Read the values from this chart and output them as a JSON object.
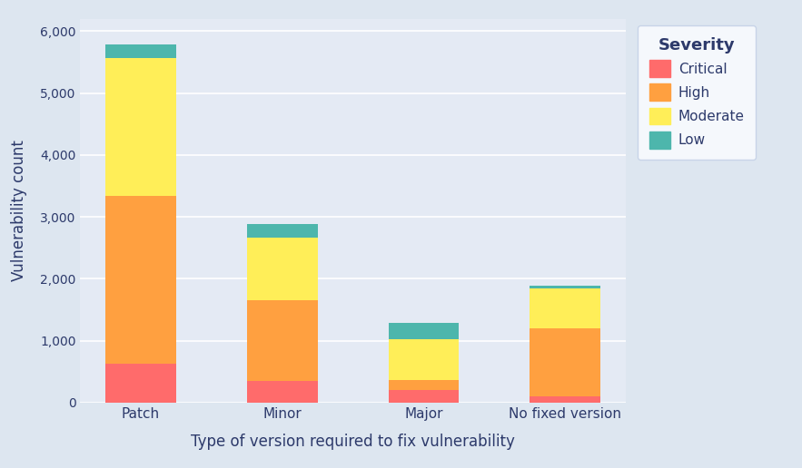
{
  "categories": [
    "Patch",
    "Minor",
    "Major",
    "No fixed version"
  ],
  "series": {
    "Critical": [
      620,
      350,
      200,
      100
    ],
    "High": [
      2720,
      1300,
      170,
      1100
    ],
    "Moderate": [
      2230,
      1010,
      650,
      650
    ],
    "Low": [
      220,
      230,
      270,
      30
    ]
  },
  "colors": {
    "Critical": "#ff6b6b",
    "High": "#ffa040",
    "Moderate": "#ffee58",
    "Low": "#4db6ac"
  },
  "xlabel": "Type of version required to fix vulnerability",
  "ylabel": "Vulnerability count",
  "legend_title": "Severity",
  "figure_background": "#dde6f0",
  "plot_background": "#e4eaf4",
  "ylim": [
    0,
    6200
  ],
  "yticks": [
    0,
    1000,
    2000,
    3000,
    4000,
    5000,
    6000
  ],
  "bar_width": 0.5,
  "label_color": "#2d3a6b",
  "legend_background": "#f5f8fc"
}
